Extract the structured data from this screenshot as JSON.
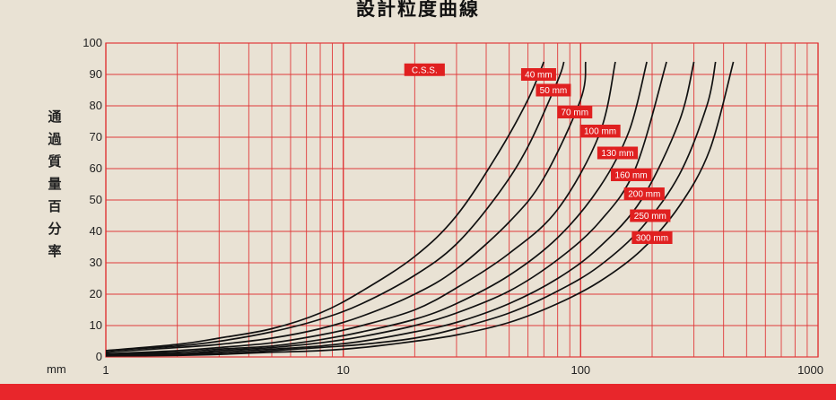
{
  "title": "設計粒度曲線",
  "ylabel_chars": [
    "通",
    "過",
    "質",
    "量",
    "百",
    "分",
    "率"
  ],
  "x_unit": "mm",
  "colors": {
    "grid": "#e0393a",
    "curve": "#111111",
    "label_bg": "#e02020",
    "label_text": "#ffffff",
    "band": "#e8262b"
  },
  "chart_data": {
    "type": "line",
    "title": "設計粒度曲線",
    "ylabel": "通過質量百分率",
    "xlabel": "mm",
    "xscale": "log",
    "xlim": [
      1,
      1000
    ],
    "ylim": [
      0,
      100
    ],
    "x_ticks": [
      "1",
      "10",
      "100",
      "1000"
    ],
    "y_ticks": [
      "0",
      "10",
      "20",
      "30",
      "40",
      "50",
      "60",
      "70",
      "80",
      "90",
      "100"
    ],
    "grid": true,
    "annotation": "C.S.S.",
    "series": [
      {
        "name": "40 mm",
        "x": [
          1,
          2,
          3,
          5,
          8,
          12,
          20,
          30,
          45,
          60,
          70
        ],
        "y": [
          2,
          4,
          6,
          9,
          14,
          21,
          32,
          45,
          65,
          82,
          94
        ]
      },
      {
        "name": "50 mm",
        "x": [
          1,
          2,
          3,
          5,
          8,
          12,
          20,
          30,
          45,
          60,
          80,
          85
        ],
        "y": [
          2,
          3.5,
          5,
          8,
          12,
          17,
          26,
          36,
          52,
          67,
          88,
          94
        ]
      },
      {
        "name": "70 mm",
        "x": [
          1,
          2,
          3,
          5,
          8,
          12,
          20,
          30,
          50,
          70,
          100,
          105
        ],
        "y": [
          1.5,
          3,
          4,
          6,
          9,
          13,
          20,
          28,
          43,
          57,
          82,
          94
        ]
      },
      {
        "name": "100 mm",
        "x": [
          1,
          2,
          3,
          5,
          8,
          12,
          20,
          30,
          50,
          80,
          120,
          140
        ],
        "y": [
          1,
          2,
          3,
          4.5,
          7,
          10,
          15,
          22,
          33,
          47,
          71,
          94
        ]
      },
      {
        "name": "130 mm",
        "x": [
          1,
          2,
          3,
          5,
          8,
          12,
          20,
          30,
          50,
          80,
          120,
          160,
          190
        ],
        "y": [
          1,
          1.5,
          2.5,
          3.5,
          5.5,
          8,
          12,
          17,
          26,
          38,
          54,
          72,
          94
        ]
      },
      {
        "name": "160 mm",
        "x": [
          1,
          2,
          3,
          5,
          8,
          12,
          20,
          30,
          50,
          80,
          120,
          170,
          230
        ],
        "y": [
          1,
          1,
          2,
          3,
          4.5,
          6.5,
          10,
          14,
          21,
          31,
          43,
          60,
          94
        ]
      },
      {
        "name": "200 mm",
        "x": [
          1,
          2,
          3,
          5,
          8,
          12,
          20,
          30,
          50,
          80,
          120,
          180,
          260,
          300
        ],
        "y": [
          0.8,
          1,
          1.5,
          2.5,
          3.5,
          5,
          8,
          11,
          17,
          25,
          35,
          50,
          75,
          94
        ]
      },
      {
        "name": "250 mm",
        "x": [
          1,
          2,
          3,
          5,
          8,
          12,
          20,
          30,
          50,
          80,
          120,
          180,
          260,
          340,
          370
        ],
        "y": [
          0.5,
          0.8,
          1,
          2,
          3,
          4,
          6,
          9,
          14,
          21,
          29,
          41,
          58,
          80,
          94
        ]
      },
      {
        "name": "300 mm",
        "x": [
          1,
          2,
          3,
          5,
          8,
          12,
          20,
          30,
          50,
          80,
          120,
          180,
          260,
          350,
          440
        ],
        "y": [
          0.3,
          0.5,
          0.8,
          1.5,
          2,
          3,
          5,
          7,
          11,
          17,
          24,
          34,
          48,
          66,
          94
        ]
      }
    ]
  }
}
